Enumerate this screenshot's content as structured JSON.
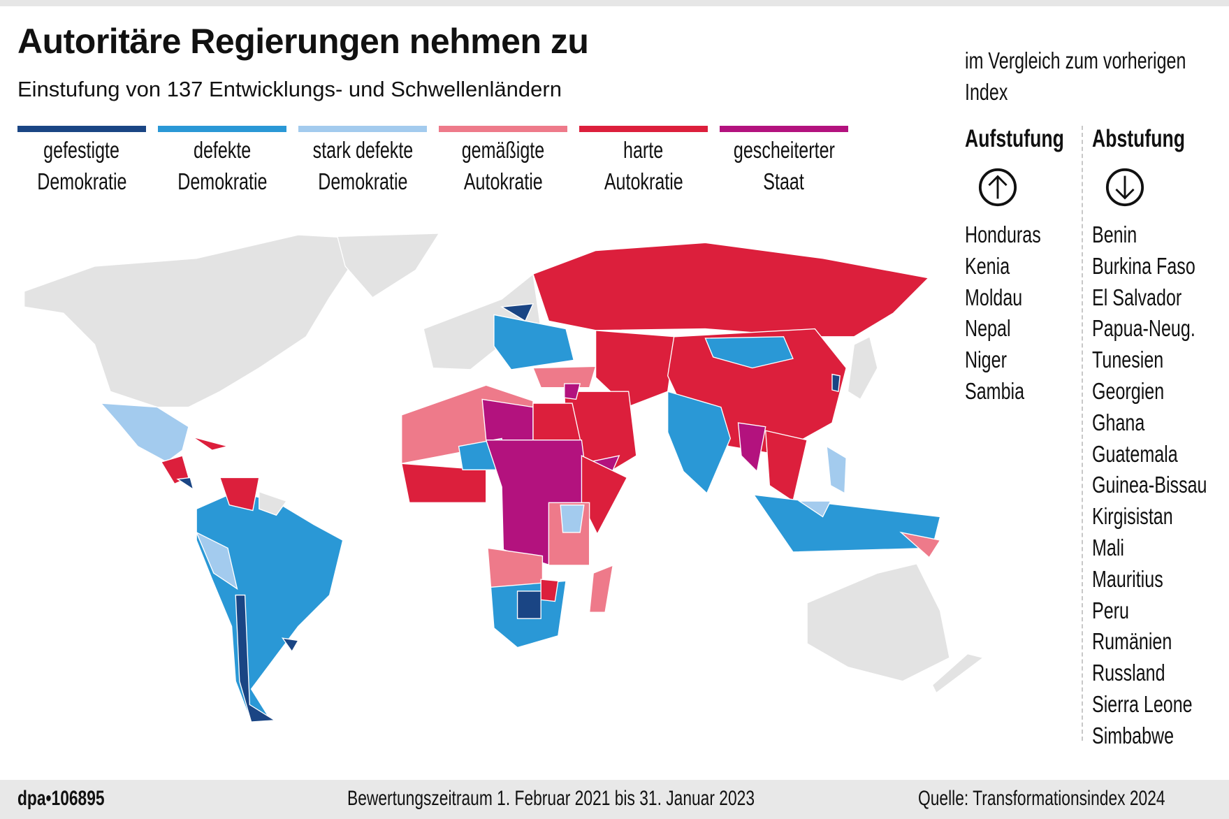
{
  "header": {
    "title": "Autoritäre Regierungen nehmen zu",
    "subtitle": "Einstufung von 137 Entwicklungs- und Schwellenländern"
  },
  "legend": [
    {
      "line1": "gefestigte",
      "line2": "Demokratie",
      "color": "#1a4584"
    },
    {
      "line1": "defekte",
      "line2": "Demokratie",
      "color": "#2a98d6"
    },
    {
      "line1": "stark defekte",
      "line2": "Demokratie",
      "color": "#a3cbee"
    },
    {
      "line1": "gemäßigte",
      "line2": "Autokratie",
      "color": "#ee7a8a"
    },
    {
      "line1": "harte",
      "line2": "Autokratie",
      "color": "#dc1f3c"
    },
    {
      "line1": "gescheiterter",
      "line2": "Staat",
      "color": "#b3127e"
    }
  ],
  "map": {
    "no_data_color": "#e3e3e3"
  },
  "comparison": {
    "line1": "im Vergleich zum vorherigen",
    "line2": "Index",
    "up": {
      "heading": "Aufstufung",
      "icon": "arrow-up-circle-icon",
      "countries": [
        "Honduras",
        "Kenia",
        "Moldau",
        "Nepal",
        "Niger",
        "Sambia"
      ]
    },
    "down": {
      "heading": "Abstufung",
      "icon": "arrow-down-circle-icon",
      "countries": [
        "Benin",
        "Burkina Faso",
        "El Salvador",
        "Papua-Neug.",
        "Tunesien",
        "Georgien",
        "Ghana",
        "Guatemala",
        "Guinea-Bissau",
        "Kirgisistan",
        "Mali",
        "Mauritius",
        "Peru",
        "Rumänien",
        "Russland",
        "Sierra Leone",
        "Simbabwe"
      ]
    }
  },
  "footer": {
    "logo": "dpa•106895",
    "period": "Bewertungszeitraum 1. Februar 2021 bis 31. Januar 2023",
    "source": "Quelle: Transformationsindex 2024"
  }
}
